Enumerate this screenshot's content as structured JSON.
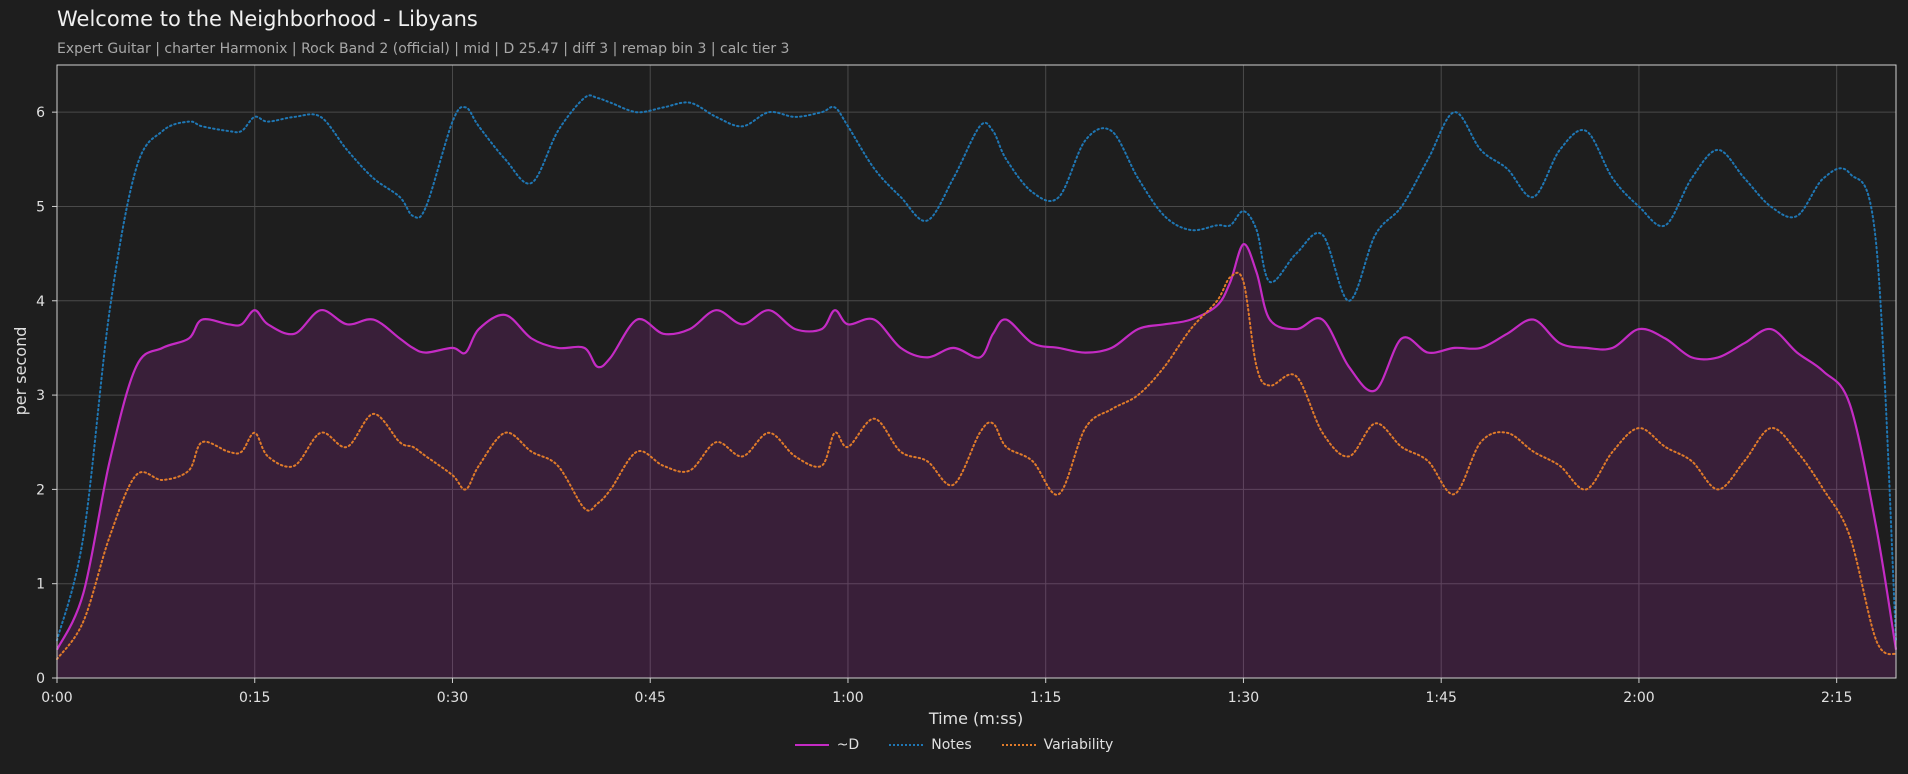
{
  "header": {
    "title": "Welcome to the Neighborhood - Libyans",
    "subtitle": "Expert Guitar  |  charter Harmonix  |  Rock Band 2 (official)  |  mid  |  D 25.47  |  diff 3  |  remap bin 3  |  calc tier 3"
  },
  "chart_data": {
    "type": "line",
    "title": "Welcome to the Neighborhood - Libyans",
    "xlabel": "Time (m:ss)",
    "ylabel": "per second",
    "xlim": [
      0,
      139.5
    ],
    "ylim": [
      0,
      6.5
    ],
    "grid": true,
    "legend_position": "bottom-center",
    "x_ticks": [
      0,
      15,
      30,
      45,
      60,
      75,
      90,
      105,
      120,
      135
    ],
    "x_tick_labels": [
      "0:00",
      "0:15",
      "0:30",
      "0:45",
      "1:00",
      "1:15",
      "1:30",
      "1:45",
      "2:00",
      "2:15"
    ],
    "y_ticks": [
      0,
      1,
      2,
      3,
      4,
      5,
      6
    ],
    "y_tick_labels": [
      "0",
      "1",
      "2",
      "3",
      "4",
      "5",
      "6"
    ],
    "x": [
      0,
      2,
      4,
      6,
      8,
      10,
      11,
      13,
      14,
      15,
      16,
      18,
      20,
      22,
      24,
      26,
      27,
      28,
      30,
      31,
      32,
      34,
      36,
      38,
      40,
      41,
      42,
      44,
      46,
      48,
      50,
      52,
      54,
      56,
      58,
      59,
      60,
      62,
      64,
      66,
      68,
      70,
      71,
      72,
      74,
      76,
      78,
      80,
      82,
      84,
      86,
      88,
      89,
      90,
      91,
      92,
      94,
      96,
      98,
      100,
      102,
      104,
      106,
      108,
      110,
      112,
      114,
      116,
      118,
      120,
      122,
      124,
      126,
      128,
      130,
      132,
      134,
      136,
      138,
      139.5
    ],
    "series": [
      {
        "name": "~D",
        "color": "#c42bc4",
        "style": "solid",
        "fill": true,
        "values": [
          0.3,
          0.9,
          2.3,
          3.3,
          3.5,
          3.6,
          3.8,
          3.75,
          3.75,
          3.9,
          3.75,
          3.65,
          3.9,
          3.75,
          3.8,
          3.6,
          3.5,
          3.45,
          3.5,
          3.45,
          3.7,
          3.85,
          3.6,
          3.5,
          3.5,
          3.3,
          3.4,
          3.8,
          3.65,
          3.7,
          3.9,
          3.75,
          3.9,
          3.7,
          3.7,
          3.9,
          3.75,
          3.8,
          3.5,
          3.4,
          3.5,
          3.4,
          3.65,
          3.8,
          3.55,
          3.5,
          3.45,
          3.5,
          3.7,
          3.75,
          3.8,
          3.95,
          4.2,
          4.6,
          4.3,
          3.8,
          3.7,
          3.8,
          3.3,
          3.05,
          3.6,
          3.45,
          3.5,
          3.5,
          3.65,
          3.8,
          3.55,
          3.5,
          3.5,
          3.7,
          3.6,
          3.4,
          3.4,
          3.55,
          3.7,
          3.45,
          3.25,
          2.9,
          1.6,
          0.3
        ]
      },
      {
        "name": "Notes",
        "color": "#1f77b4",
        "style": "dotted",
        "fill": false,
        "values": [
          0.4,
          1.5,
          3.9,
          5.4,
          5.8,
          5.9,
          5.85,
          5.8,
          5.8,
          5.95,
          5.9,
          5.95,
          5.95,
          5.6,
          5.3,
          5.1,
          4.9,
          5.0,
          5.9,
          6.05,
          5.85,
          5.5,
          5.25,
          5.8,
          6.15,
          6.15,
          6.1,
          6.0,
          6.05,
          6.1,
          5.95,
          5.85,
          6.0,
          5.95,
          6.0,
          6.05,
          5.85,
          5.4,
          5.1,
          4.85,
          5.3,
          5.85,
          5.8,
          5.5,
          5.15,
          5.1,
          5.7,
          5.8,
          5.3,
          4.9,
          4.75,
          4.8,
          4.8,
          4.95,
          4.75,
          4.2,
          4.5,
          4.7,
          4.0,
          4.7,
          5.0,
          5.5,
          6.0,
          5.6,
          5.4,
          5.1,
          5.6,
          5.8,
          5.3,
          5.0,
          4.8,
          5.3,
          5.6,
          5.3,
          5.0,
          4.9,
          5.3,
          5.35,
          4.6,
          0.4
        ]
      },
      {
        "name": "Variability",
        "color": "#e07b2a",
        "style": "dotted",
        "fill": false,
        "values": [
          0.2,
          0.6,
          1.5,
          2.15,
          2.1,
          2.2,
          2.5,
          2.4,
          2.4,
          2.6,
          2.35,
          2.25,
          2.6,
          2.45,
          2.8,
          2.5,
          2.45,
          2.35,
          2.15,
          2.0,
          2.25,
          2.6,
          2.4,
          2.25,
          1.8,
          1.85,
          2.0,
          2.4,
          2.25,
          2.2,
          2.5,
          2.35,
          2.6,
          2.35,
          2.25,
          2.6,
          2.45,
          2.75,
          2.4,
          2.3,
          2.05,
          2.6,
          2.7,
          2.45,
          2.3,
          1.95,
          2.65,
          2.85,
          3.0,
          3.3,
          3.7,
          4.0,
          4.25,
          4.2,
          3.3,
          3.1,
          3.2,
          2.6,
          2.35,
          2.7,
          2.45,
          2.3,
          1.95,
          2.5,
          2.6,
          2.4,
          2.25,
          2.0,
          2.4,
          2.65,
          2.45,
          2.3,
          2.0,
          2.3,
          2.65,
          2.4,
          2.0,
          1.5,
          0.4,
          0.25
        ]
      }
    ]
  }
}
